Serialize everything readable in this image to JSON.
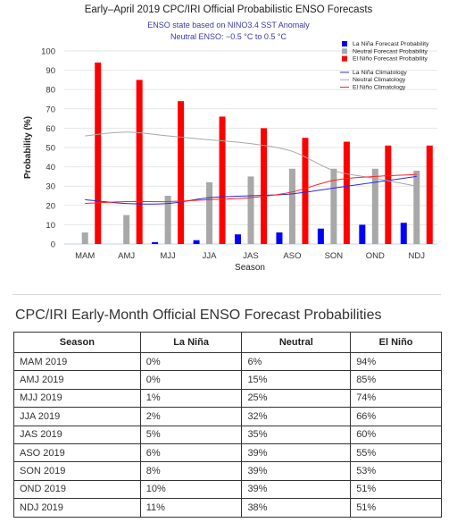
{
  "chart_data": {
    "type": "bar",
    "title": "Early–April 2019 CPC/IRI Official Probabilistic ENSO Forecasts",
    "subtitle_lines": [
      "ENSO state based on NINO3.4 SST Anomaly",
      "Neutral ENSO: −0.5 °C to 0.5 °C"
    ],
    "xlabel": "Season",
    "ylabel": "Probability (%)",
    "ylim": [
      0,
      100
    ],
    "yticks": [
      0,
      10,
      20,
      30,
      40,
      50,
      60,
      70,
      80,
      90,
      100
    ],
    "categories": [
      "MAM",
      "AMJ",
      "MJJ",
      "JJA",
      "JAS",
      "ASO",
      "SON",
      "OND",
      "NDJ"
    ],
    "series": [
      {
        "name": "La Niña Forecast Probability",
        "kind": "bar",
        "color": "#0000ff",
        "values": [
          0,
          0,
          1,
          2,
          5,
          6,
          8,
          10,
          11
        ]
      },
      {
        "name": "Neutral Forecast Probability",
        "kind": "bar",
        "color": "#a8a8a8",
        "values": [
          6,
          15,
          25,
          32,
          35,
          39,
          39,
          39,
          38
        ]
      },
      {
        "name": "El Niño Forecast Probability",
        "kind": "bar",
        "color": "#ff0000",
        "values": [
          94,
          85,
          74,
          66,
          60,
          55,
          53,
          51,
          51
        ]
      },
      {
        "name": "La Niña Climatology",
        "kind": "line",
        "color": "#2b2bd9",
        "values": [
          23,
          21,
          21,
          24,
          25,
          26,
          29,
          32,
          35
        ]
      },
      {
        "name": "Neutral Climatology",
        "kind": "line",
        "color": "#a8a8a8",
        "values": [
          56,
          58,
          56,
          54,
          52,
          48,
          38,
          34,
          30
        ]
      },
      {
        "name": "El Niño Climatology",
        "kind": "line",
        "color": "#ff2020",
        "values": [
          21,
          22,
          22,
          23,
          24,
          27,
          33,
          35,
          36
        ]
      }
    ],
    "legend_position": "top-right"
  },
  "table": {
    "title": "CPC/IRI Early-Month Official ENSO Forecast Probabilities",
    "headers": [
      "Season",
      "La Niña",
      "Neutral",
      "El Niño"
    ],
    "rows": [
      [
        "MAM 2019",
        "0%",
        "6%",
        "94%"
      ],
      [
        "AMJ 2019",
        "0%",
        "15%",
        "85%"
      ],
      [
        "MJJ 2019",
        "1%",
        "25%",
        "74%"
      ],
      [
        "JJA 2019",
        "2%",
        "32%",
        "66%"
      ],
      [
        "JAS 2019",
        "5%",
        "35%",
        "60%"
      ],
      [
        "ASO 2019",
        "6%",
        "39%",
        "55%"
      ],
      [
        "SON 2019",
        "8%",
        "39%",
        "53%"
      ],
      [
        "OND 2019",
        "10%",
        "39%",
        "51%"
      ],
      [
        "NDJ 2019",
        "11%",
        "38%",
        "51%"
      ]
    ]
  }
}
